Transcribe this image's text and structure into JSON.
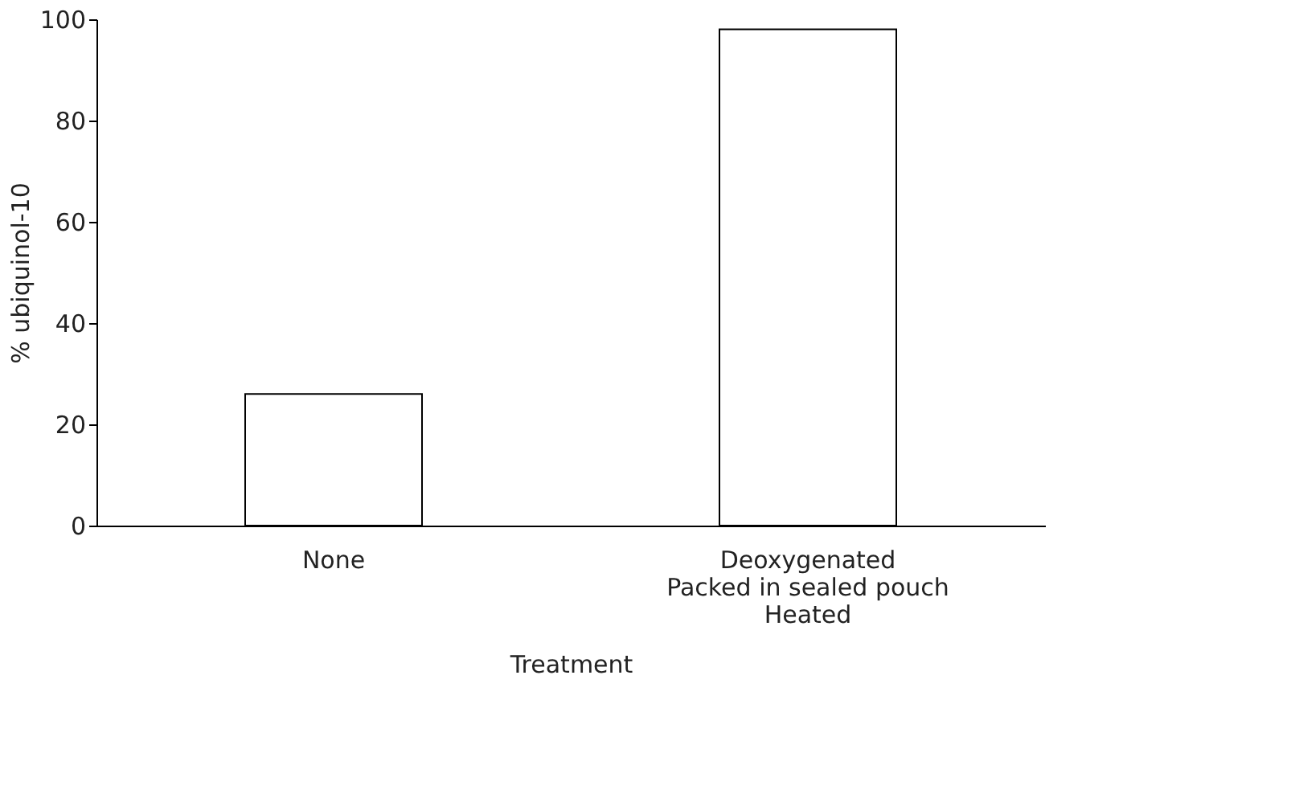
{
  "chart_data": {
    "type": "bar",
    "xlabel": "Treatment",
    "ylabel": "% ubiquinol-10",
    "categories": [
      "None",
      "Deoxygenated\nPacked in sealed pouch\nHeated"
    ],
    "values": [
      26,
      98
    ],
    "color": "#ffffff",
    "ylim": [
      0,
      100
    ],
    "yticks": [
      0,
      20,
      40,
      60,
      80,
      100
    ],
    "grid": false
  }
}
